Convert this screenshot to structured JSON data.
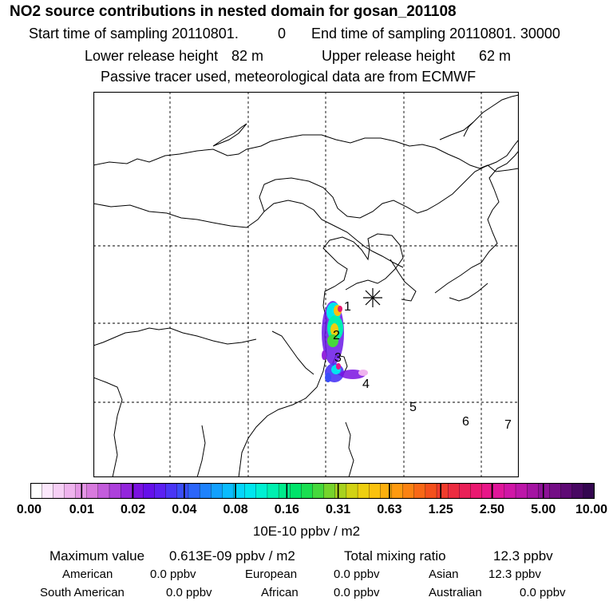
{
  "header": {
    "title": "NO2 source contributions in nested domain for gosan_201108",
    "start_label": "Start time of sampling 20110801.",
    "start_value": "0",
    "end_label": "End time of sampling 20110801. 30000",
    "lower_label": "Lower release height",
    "lower_value": "82 m",
    "upper_label": "Upper release height",
    "upper_value": "62 m",
    "note": "Passive tracer used, meteorological data are from ECMWF"
  },
  "map": {
    "region_labels": [
      "1",
      "2",
      "3",
      "4",
      "5",
      "6",
      "7"
    ],
    "receptor_marker": "asterisk-icon"
  },
  "colorbar": {
    "ticks": [
      "0.00",
      "0.01",
      "0.02",
      "0.04",
      "0.08",
      "0.16",
      "0.31",
      "0.63",
      "1.25",
      "2.50",
      "5.00",
      "10.00"
    ],
    "unit": "10E-10 ppbv / m2",
    "colors": [
      "#ffffff",
      "#fbe7fb",
      "#f6cff5",
      "#efb3ee",
      "#e596e6",
      "#d87ade",
      "#c35cdc",
      "#ad40dc",
      "#9326dc",
      "#7a12e0",
      "#6510ea",
      "#5c20f2",
      "#4a36f5",
      "#3a4ef8",
      "#2c66fa",
      "#1e82fc",
      "#12a0fe",
      "#0abcfe",
      "#04d6fa",
      "#00e6ee",
      "#00f0d2",
      "#00f0b0",
      "#00ec8c",
      "#00e46a",
      "#1ade50",
      "#46d83c",
      "#76d42c",
      "#a8d21e",
      "#d2d214",
      "#eecf10",
      "#fac20e",
      "#fdb00e",
      "#fd9a10",
      "#fb8212",
      "#f86816",
      "#f4501c",
      "#f03c2c",
      "#ec2c40",
      "#ea2058",
      "#ea1870",
      "#e81688",
      "#e0169a",
      "#d016a6",
      "#bc16a8",
      "#a414a2",
      "#8c1296",
      "#740e86",
      "#5e0a74",
      "#480862",
      "#340650"
    ]
  },
  "stats": {
    "max_label": "Maximum value",
    "max_value": "0.613E-09 ppbv / m2",
    "total_label": "Total mixing ratio",
    "total_value": "12.3 ppbv",
    "rows": [
      [
        {
          "label": "American",
          "value": "0.0 ppbv"
        },
        {
          "label": "European",
          "value": "0.0 ppbv"
        },
        {
          "label": "Asian",
          "value": "12.3 ppbv"
        }
      ],
      [
        {
          "label": "South American",
          "value": "0.0 ppbv"
        },
        {
          "label": "African",
          "value": "0.0 ppbv"
        },
        {
          "label": "Australian",
          "value": "0.0 ppbv"
        }
      ]
    ]
  }
}
